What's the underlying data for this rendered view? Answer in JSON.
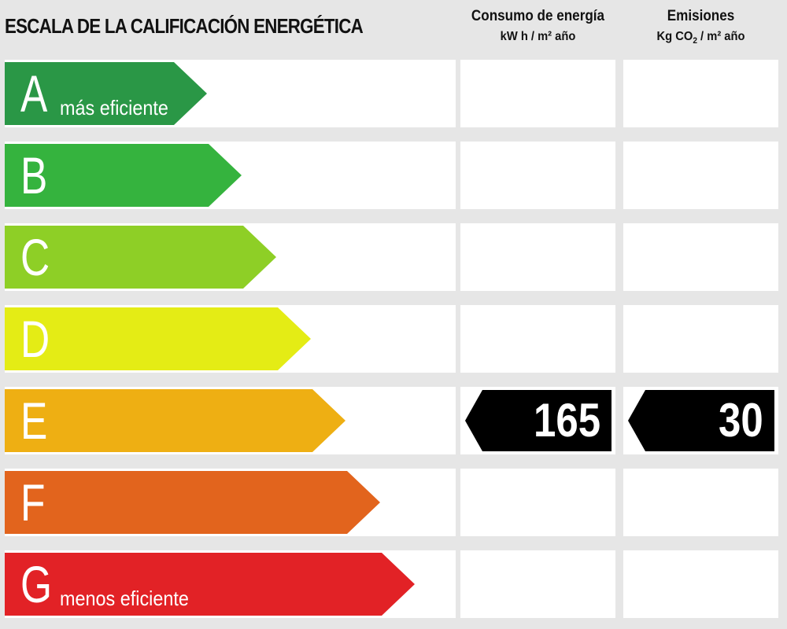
{
  "title": "ESCALA DE LA CALIFICACIÓN ENERGÉTICA",
  "columns": {
    "energy": {
      "title": "Consumo de energía",
      "unit": "kW h / m² año"
    },
    "emissions": {
      "title": "Emisiones",
      "unit_prefix": "Kg CO",
      "unit_sub": "2",
      "unit_suffix": " / m² año"
    }
  },
  "ratings": [
    {
      "letter": "A",
      "label": "más eficiente",
      "color": "#2a9746"
    },
    {
      "letter": "B",
      "label": "",
      "color": "#35b33e"
    },
    {
      "letter": "C",
      "label": "",
      "color": "#8ecf26"
    },
    {
      "letter": "D",
      "label": "",
      "color": "#e4ec15"
    },
    {
      "letter": "E",
      "label": "",
      "color": "#eeaf13"
    },
    {
      "letter": "F",
      "label": "",
      "color": "#e2641d"
    },
    {
      "letter": "G",
      "label": "menos eficiente",
      "color": "#e22226"
    }
  ],
  "result": {
    "rating": "E",
    "energy_value": "165",
    "emissions_value": "30",
    "badge_color": "#000000"
  }
}
